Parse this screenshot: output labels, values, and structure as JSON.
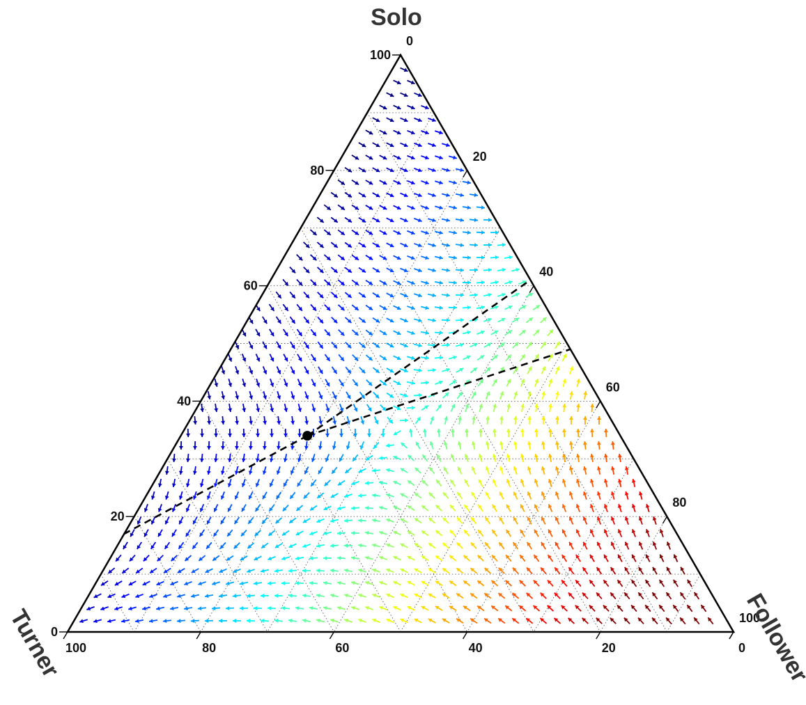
{
  "chart_data": {
    "type": "ternary-vector-field",
    "corners": {
      "top": "Solo",
      "left": "Turner",
      "right": "Follower"
    },
    "tick_values": [
      0,
      20,
      40,
      60,
      80,
      100
    ],
    "axes": {
      "bottom": {
        "ticks": [
          "100",
          "80",
          "60",
          "40",
          "20",
          "0"
        ]
      },
      "left": {
        "ticks": [
          "0",
          "20",
          "40",
          "60",
          "80",
          "100"
        ]
      },
      "right": {
        "ticks": [
          "0",
          "20",
          "40",
          "60",
          "80",
          "100"
        ]
      }
    },
    "grid": true,
    "grid_style": "dotted",
    "colormap": "jet",
    "equilibrium": {
      "solo": 34,
      "turner": 47,
      "follower": 19
    },
    "dashed_separatrices": [
      {
        "from": {
          "solo": 34,
          "turner": 47,
          "follower": 19
        },
        "to": {
          "solo": 61,
          "turner": 0,
          "follower": 39
        }
      },
      {
        "from": {
          "solo": 34,
          "turner": 47,
          "follower": 19
        },
        "to": {
          "solo": 17,
          "turner": 83,
          "follower": 0
        }
      },
      {
        "from": {
          "solo": 34,
          "turner": 47,
          "follower": 19
        },
        "to": {
          "solo": 49,
          "turner": 0,
          "follower": 51
        }
      }
    ]
  }
}
